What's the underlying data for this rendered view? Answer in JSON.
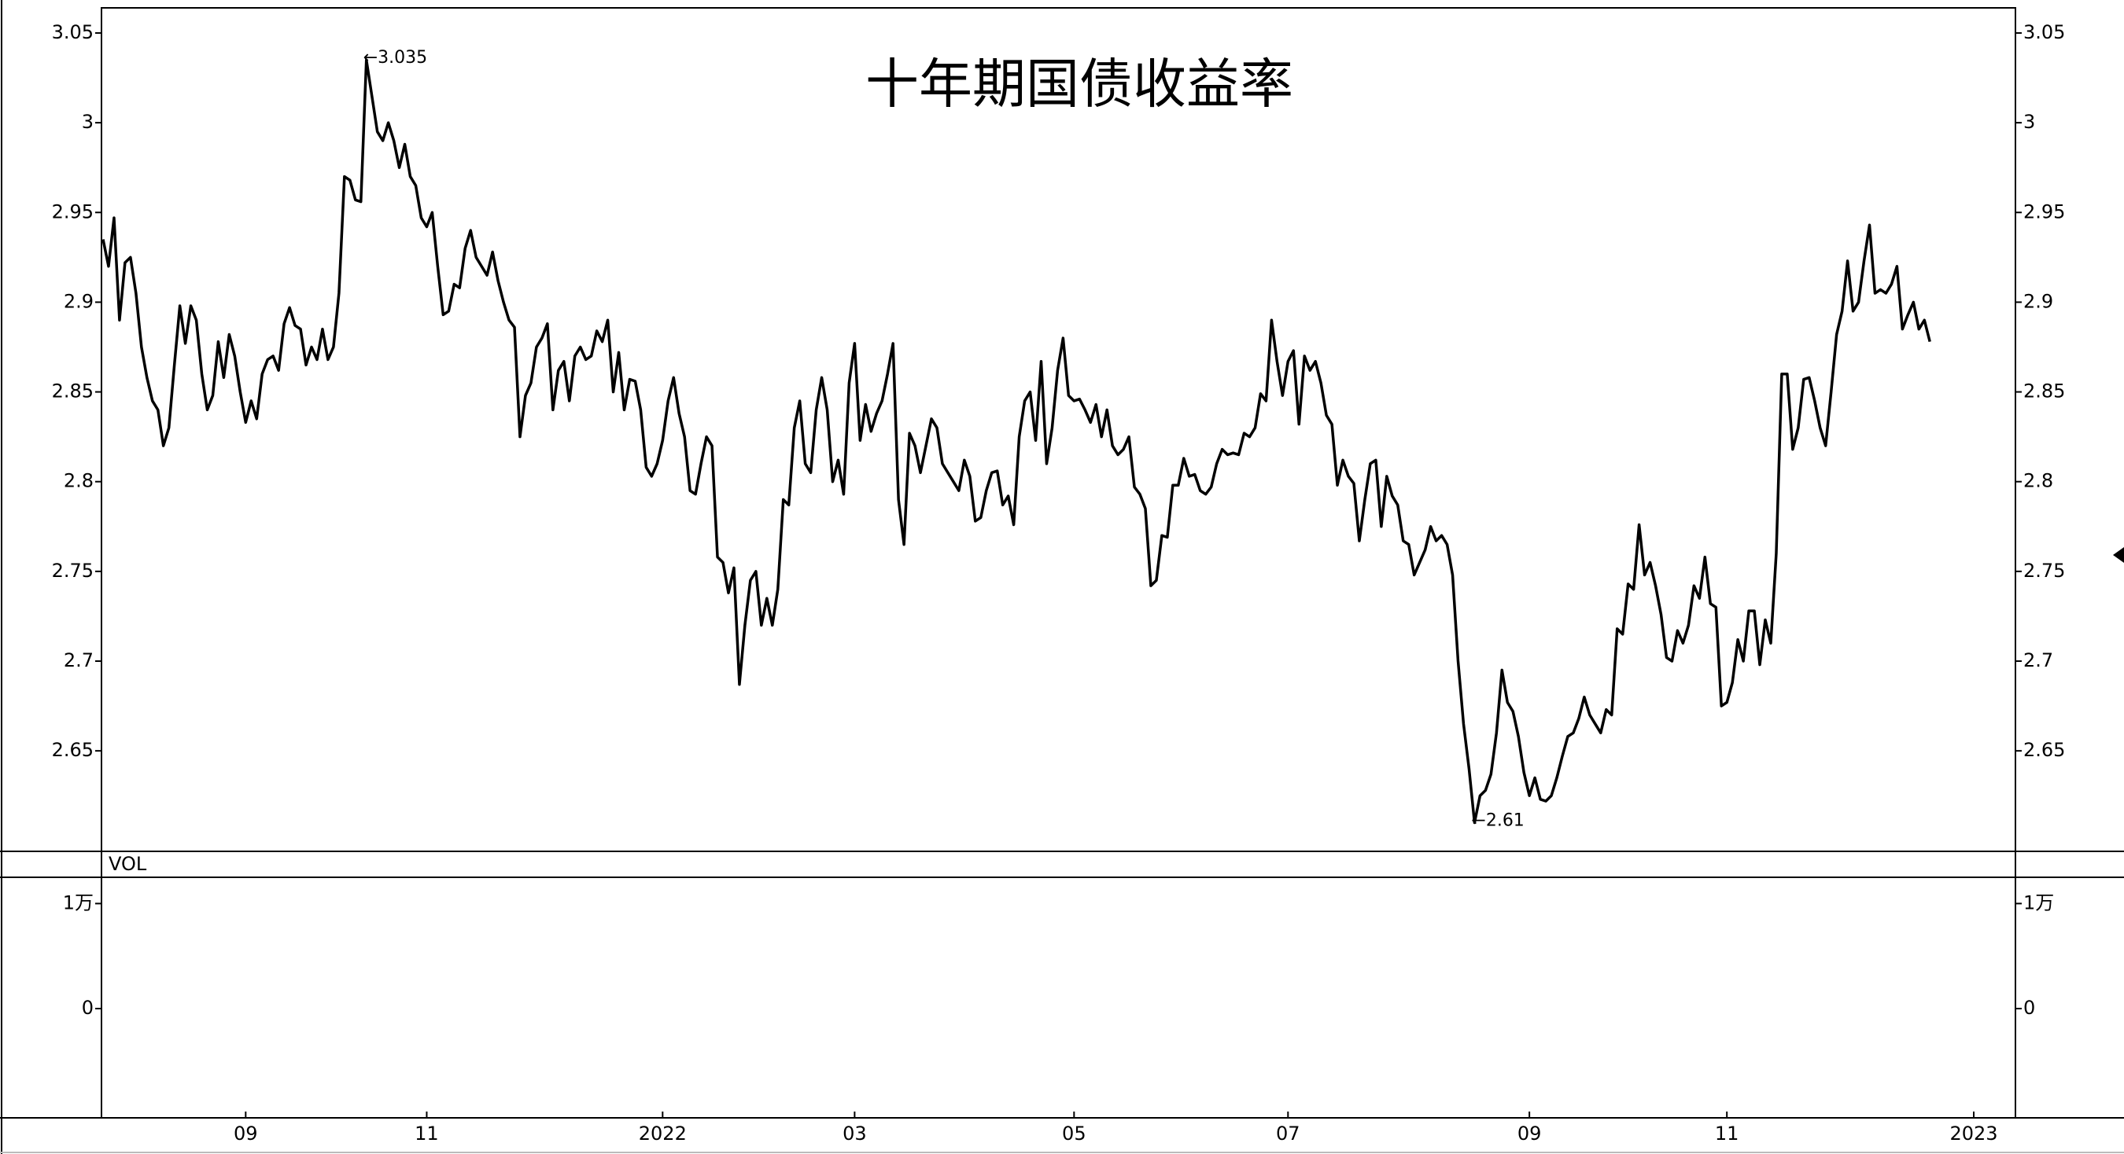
{
  "chart_data": {
    "type": "line",
    "title": "十年期国债收益率",
    "title_color": "#e8281e",
    "color": "#000000",
    "year_label_color": "#e8a33c",
    "categories": [
      null,
      null,
      null,
      null,
      null,
      null,
      null,
      null,
      null,
      null,
      null,
      null,
      null,
      null,
      null,
      null,
      null,
      null,
      null,
      null,
      null,
      null,
      null,
      null,
      null,
      null,
      "09",
      null,
      null,
      null,
      null,
      null,
      null,
      null,
      null,
      null,
      null,
      null,
      null,
      null,
      null,
      null,
      null,
      null,
      null,
      null,
      null,
      null,
      null,
      null,
      null,
      null,
      null,
      null,
      null,
      null,
      null,
      null,
      null,
      "11",
      null,
      null,
      null,
      null,
      null,
      null,
      null,
      null,
      null,
      null,
      null,
      null,
      null,
      null,
      null,
      null,
      null,
      null,
      null,
      null,
      null,
      null,
      null,
      null,
      null,
      null,
      null,
      null,
      null,
      null,
      null,
      null,
      null,
      null,
      null,
      null,
      null,
      null,
      null,
      null,
      null,
      null,
      "2022",
      null,
      null,
      null,
      null,
      null,
      null,
      null,
      null,
      null,
      null,
      null,
      null,
      null,
      null,
      null,
      null,
      null,
      null,
      null,
      null,
      null,
      null,
      null,
      null,
      null,
      null,
      null,
      null,
      null,
      null,
      null,
      null,
      null,
      null,
      "03",
      null,
      null,
      null,
      null,
      null,
      null,
      null,
      null,
      null,
      null,
      null,
      null,
      null,
      null,
      null,
      null,
      null,
      null,
      null,
      null,
      null,
      null,
      null,
      null,
      null,
      null,
      null,
      null,
      null,
      null,
      null,
      null,
      null,
      null,
      null,
      null,
      null,
      null,
      null,
      "05",
      null,
      null,
      null,
      null,
      null,
      null,
      null,
      null,
      null,
      null,
      null,
      null,
      null,
      null,
      null,
      null,
      null,
      null,
      null,
      null,
      null,
      null,
      null,
      null,
      null,
      null,
      null,
      null,
      null,
      null,
      null,
      null,
      null,
      null,
      null,
      null,
      null,
      null,
      "07",
      null,
      null,
      null,
      null,
      null,
      null,
      null,
      null,
      null,
      null,
      null,
      null,
      null,
      null,
      null,
      null,
      null,
      null,
      null,
      null,
      null,
      null,
      null,
      null,
      null,
      null,
      null,
      null,
      null,
      null,
      null,
      null,
      null,
      null,
      null,
      null,
      null,
      null,
      null,
      null,
      null,
      null,
      null,
      "09",
      null,
      null,
      null,
      null,
      null,
      null,
      null,
      null,
      null,
      null,
      null,
      null,
      null,
      null,
      null,
      null,
      null,
      null,
      null,
      null,
      null,
      null,
      null,
      null,
      null,
      null,
      null,
      null,
      null,
      null,
      null,
      null,
      null,
      null,
      null,
      "11",
      null,
      null,
      null,
      null,
      null,
      null,
      null,
      null,
      null,
      null,
      null,
      null,
      null,
      null,
      null,
      null,
      null,
      null,
      null,
      null,
      null,
      null,
      null,
      null,
      null,
      null,
      null,
      null,
      null,
      null,
      null,
      null,
      null,
      null,
      null,
      null,
      null,
      null,
      null,
      null,
      null,
      null,
      null,
      null,
      "2023"
    ],
    "values": [
      2.935,
      2.92,
      2.947,
      2.89,
      2.922,
      2.925,
      2.905,
      2.875,
      2.858,
      2.845,
      2.84,
      2.82,
      2.83,
      2.865,
      2.898,
      2.877,
      2.898,
      2.89,
      2.86,
      2.84,
      2.848,
      2.878,
      2.858,
      2.882,
      2.87,
      2.85,
      2.833,
      2.845,
      2.835,
      2.86,
      2.868,
      2.87,
      2.862,
      2.888,
      2.897,
      2.887,
      2.885,
      2.865,
      2.875,
      2.868,
      2.885,
      2.868,
      2.875,
      2.905,
      2.97,
      2.968,
      2.957,
      2.956,
      3.035,
      3.015,
      2.995,
      2.99,
      3.0,
      2.99,
      2.975,
      2.988,
      2.97,
      2.965,
      2.947,
      2.942,
      2.95,
      2.92,
      2.893,
      2.895,
      2.91,
      2.908,
      2.93,
      2.94,
      2.925,
      2.92,
      2.915,
      2.928,
      2.912,
      2.9,
      2.89,
      2.886,
      2.825,
      2.848,
      2.855,
      2.875,
      2.88,
      2.888,
      2.84,
      2.862,
      2.867,
      2.845,
      2.87,
      2.875,
      2.868,
      2.87,
      2.884,
      2.878,
      2.89,
      2.85,
      2.872,
      2.84,
      2.857,
      2.856,
      2.84,
      2.808,
      2.803,
      2.81,
      2.823,
      2.845,
      2.858,
      2.838,
      2.825,
      2.795,
      2.793,
      2.81,
      2.825,
      2.82,
      2.758,
      2.755,
      2.738,
      2.752,
      2.687,
      2.72,
      2.745,
      2.75,
      2.72,
      2.735,
      2.72,
      2.74,
      2.79,
      2.787,
      2.83,
      2.845,
      2.81,
      2.805,
      2.84,
      2.858,
      2.84,
      2.8,
      2.812,
      2.793,
      2.855,
      2.877,
      2.823,
      2.843,
      2.828,
      2.838,
      2.845,
      2.86,
      2.877,
      2.79,
      2.765,
      2.827,
      2.82,
      2.805,
      2.82,
      2.835,
      2.83,
      2.81,
      2.805,
      2.8,
      2.795,
      2.812,
      2.803,
      2.778,
      2.78,
      2.795,
      2.805,
      2.806,
      2.787,
      2.792,
      2.776,
      2.825,
      2.845,
      2.85,
      2.823,
      2.867,
      2.81,
      2.83,
      2.862,
      2.88,
      2.848,
      2.845,
      2.846,
      2.84,
      2.833,
      2.843,
      2.825,
      2.84,
      2.82,
      2.815,
      2.818,
      2.825,
      2.797,
      2.793,
      2.785,
      2.742,
      2.745,
      2.77,
      2.769,
      2.798,
      2.798,
      2.813,
      2.803,
      2.804,
      2.795,
      2.793,
      2.797,
      2.81,
      2.818,
      2.815,
      2.816,
      2.815,
      2.827,
      2.825,
      2.83,
      2.849,
      2.845,
      2.89,
      2.867,
      2.848,
      2.867,
      2.873,
      2.832,
      2.87,
      2.862,
      2.867,
      2.855,
      2.837,
      2.832,
      2.798,
      2.812,
      2.803,
      2.799,
      2.767,
      2.79,
      2.81,
      2.812,
      2.775,
      2.803,
      2.792,
      2.787,
      2.767,
      2.765,
      2.748,
      2.755,
      2.762,
      2.775,
      2.767,
      2.77,
      2.765,
      2.748,
      2.7,
      2.665,
      2.64,
      2.61,
      2.625,
      2.628,
      2.637,
      2.66,
      2.695,
      2.677,
      2.672,
      2.658,
      2.638,
      2.625,
      2.635,
      2.623,
      2.622,
      2.625,
      2.635,
      2.647,
      2.658,
      2.66,
      2.668,
      2.68,
      2.67,
      2.665,
      2.66,
      2.673,
      2.67,
      2.718,
      2.715,
      2.743,
      2.74,
      2.776,
      2.748,
      2.755,
      2.742,
      2.726,
      2.702,
      2.7,
      2.717,
      2.71,
      2.72,
      2.742,
      2.735,
      2.758,
      2.732,
      2.73,
      2.675,
      2.677,
      2.688,
      2.712,
      2.7,
      2.728,
      2.728,
      2.698,
      2.723,
      2.71,
      2.76,
      2.86,
      2.86,
      2.818,
      2.83,
      2.857,
      2.858,
      2.845,
      2.83,
      2.82,
      2.85,
      2.882,
      2.895,
      2.923,
      2.895,
      2.9,
      2.923,
      2.943,
      2.905,
      2.907,
      2.905,
      2.91,
      2.92,
      2.885,
      2.893,
      2.9,
      2.885,
      2.89,
      2.878,
      null,
      null,
      null,
      null,
      null,
      null,
      null,
      null
    ],
    "ylim": [
      2.594,
      3.064
    ],
    "yticks": [
      2.65,
      2.7,
      2.75,
      2.8,
      2.85,
      2.9,
      2.95,
      3,
      3.05
    ],
    "annotations": [
      {
        "label": "←3.035",
        "value": 3.035,
        "color": "#d6104f"
      },
      {
        "label": "←2.61",
        "value": 2.61,
        "color": "#0f9a5a"
      }
    ],
    "volume": {
      "label": "VOL",
      "ylim": [
        -10400,
        12500
      ],
      "yticks": [
        0,
        {
          "value": 10000,
          "label": "1万"
        }
      ]
    }
  }
}
